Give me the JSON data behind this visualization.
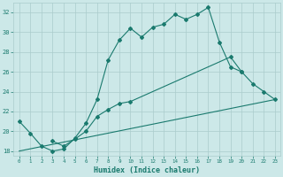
{
  "xlabel": "Humidex (Indice chaleur)",
  "background_color": "#cce8e8",
  "grid_color": "#aacccc",
  "line_color": "#1a7a6e",
  "xlim": [
    -0.5,
    23.5
  ],
  "ylim": [
    17.5,
    33.0
  ],
  "yticks": [
    18,
    20,
    22,
    24,
    26,
    28,
    30,
    32
  ],
  "xticks": [
    0,
    1,
    2,
    3,
    4,
    5,
    6,
    7,
    8,
    9,
    10,
    11,
    12,
    13,
    14,
    15,
    16,
    17,
    18,
    19,
    20,
    21,
    22,
    23
  ],
  "line1_x": [
    0,
    1,
    2,
    3,
    4,
    5,
    6,
    7,
    8,
    9,
    10,
    11,
    12,
    13,
    14,
    15,
    16,
    17,
    18,
    19,
    20
  ],
  "line1_y": [
    21.0,
    19.8,
    18.5,
    18.0,
    18.2,
    19.3,
    20.8,
    23.2,
    27.2,
    29.2,
    30.4,
    29.5,
    30.5,
    30.8,
    31.8,
    31.3,
    31.8,
    32.5,
    29.0,
    26.5,
    26.0
  ],
  "line2_x": [
    3,
    4,
    5,
    6,
    7,
    8,
    9,
    10,
    19,
    20,
    21,
    22,
    23
  ],
  "line2_y": [
    19.0,
    18.5,
    19.2,
    20.0,
    21.5,
    22.2,
    22.8,
    23.0,
    27.5,
    26.0,
    24.8,
    24.0,
    23.2
  ],
  "line3_x": [
    0,
    23
  ],
  "line3_y": [
    18.0,
    23.2
  ]
}
